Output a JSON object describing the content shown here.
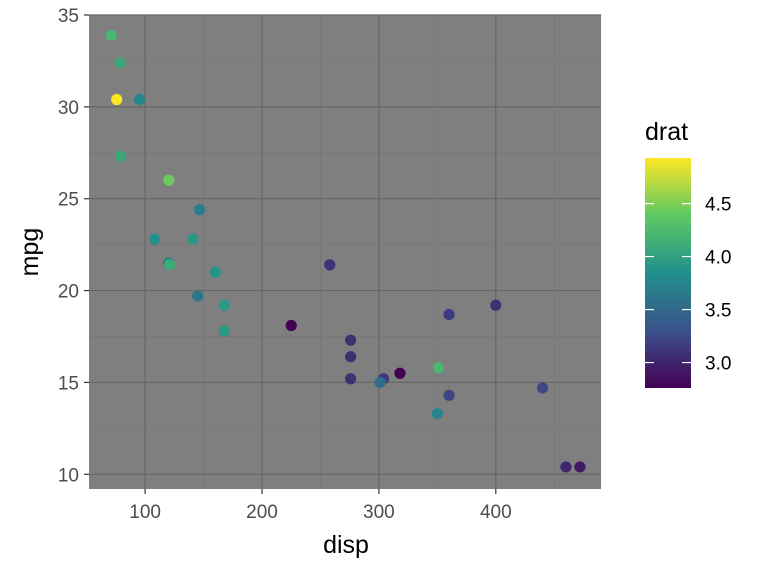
{
  "chart_data": {
    "type": "scatter",
    "xlabel": "disp",
    "ylabel": "mpg",
    "xlim": [
      52.0,
      490.0
    ],
    "ylim": [
      9.2,
      35.0
    ],
    "x_ticks": [
      100,
      200,
      300,
      400
    ],
    "y_ticks": [
      10,
      15,
      20,
      25,
      30,
      35
    ],
    "grid": true,
    "legend_placement": "right",
    "color_legend": {
      "title": "drat",
      "range": [
        2.76,
        4.93
      ],
      "ticks": [
        3.0,
        3.5,
        4.0,
        4.5
      ],
      "palette": [
        "#440154",
        "#3b528b",
        "#21908c",
        "#5dc863",
        "#fde725"
      ]
    },
    "points": [
      {
        "x": 160.0,
        "y": 21.0,
        "color": 3.9
      },
      {
        "x": 160.0,
        "y": 21.0,
        "color": 3.9
      },
      {
        "x": 108.0,
        "y": 22.8,
        "color": 3.85
      },
      {
        "x": 258.0,
        "y": 21.4,
        "color": 3.08
      },
      {
        "x": 360.0,
        "y": 18.7,
        "color": 3.15
      },
      {
        "x": 225.0,
        "y": 18.1,
        "color": 2.76
      },
      {
        "x": 360.0,
        "y": 14.3,
        "color": 3.21
      },
      {
        "x": 146.7,
        "y": 24.4,
        "color": 3.69
      },
      {
        "x": 140.8,
        "y": 22.8,
        "color": 3.92
      },
      {
        "x": 167.6,
        "y": 19.2,
        "color": 3.92
      },
      {
        "x": 167.6,
        "y": 17.8,
        "color": 3.92
      },
      {
        "x": 275.8,
        "y": 16.4,
        "color": 3.07
      },
      {
        "x": 275.8,
        "y": 17.3,
        "color": 3.07
      },
      {
        "x": 275.8,
        "y": 15.2,
        "color": 3.07
      },
      {
        "x": 472.0,
        "y": 10.4,
        "color": 2.93
      },
      {
        "x": 460.0,
        "y": 10.4,
        "color": 3.0
      },
      {
        "x": 440.0,
        "y": 14.7,
        "color": 3.23
      },
      {
        "x": 78.7,
        "y": 32.4,
        "color": 4.08
      },
      {
        "x": 75.7,
        "y": 30.4,
        "color": 4.93
      },
      {
        "x": 71.1,
        "y": 33.9,
        "color": 4.22
      },
      {
        "x": 120.1,
        "y": 21.5,
        "color": 3.7
      },
      {
        "x": 318.0,
        "y": 15.5,
        "color": 2.76
      },
      {
        "x": 304.0,
        "y": 15.2,
        "color": 3.15
      },
      {
        "x": 350.0,
        "y": 13.3,
        "color": 3.73
      },
      {
        "x": 400.0,
        "y": 19.2,
        "color": 3.08
      },
      {
        "x": 79.0,
        "y": 27.3,
        "color": 4.08
      },
      {
        "x": 120.3,
        "y": 26.0,
        "color": 4.43
      },
      {
        "x": 95.1,
        "y": 30.4,
        "color": 3.77
      },
      {
        "x": 351.0,
        "y": 15.8,
        "color": 4.22
      },
      {
        "x": 145.0,
        "y": 19.7,
        "color": 3.62
      },
      {
        "x": 301.0,
        "y": 15.0,
        "color": 3.54
      },
      {
        "x": 121.0,
        "y": 21.4,
        "color": 4.11
      }
    ]
  }
}
